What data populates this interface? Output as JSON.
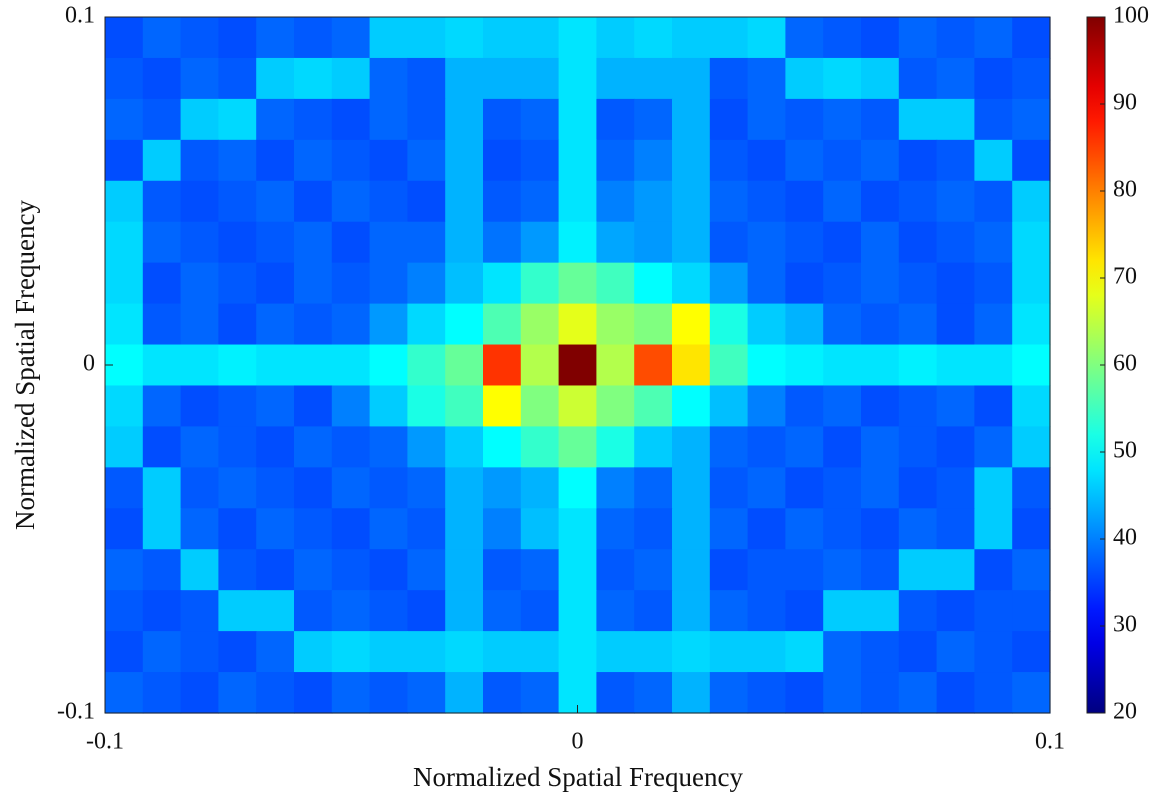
{
  "chart_data": {
    "type": "heatmap",
    "x_label": "Normalized Spatial Frequency",
    "y_label": "Normalized Spatial Frequency",
    "xlim": [
      -0.1,
      0.1
    ],
    "ylim": [
      -0.1,
      0.1
    ],
    "xticks": [
      -0.1,
      0,
      0.1
    ],
    "yticks": [
      -0.1,
      0,
      0.1
    ],
    "colormap": "jet",
    "clim": [
      20,
      100
    ],
    "cticks": [
      20,
      30,
      40,
      50,
      60,
      70,
      80,
      90,
      100
    ],
    "z": [
      [
        36,
        38,
        37,
        36,
        38,
        37,
        38,
        46,
        46,
        47,
        46,
        46,
        48,
        46,
        47,
        46,
        46,
        47,
        38,
        37,
        36,
        38,
        37,
        38,
        36
      ],
      [
        37,
        36,
        38,
        37,
        46,
        47,
        46,
        38,
        37,
        44,
        44,
        44,
        48,
        44,
        44,
        44,
        37,
        38,
        46,
        47,
        46,
        37,
        38,
        36,
        37
      ],
      [
        38,
        37,
        46,
        47,
        38,
        37,
        36,
        38,
        37,
        44,
        37,
        38,
        48,
        37,
        38,
        44,
        36,
        38,
        37,
        38,
        37,
        46,
        46,
        37,
        38
      ],
      [
        36,
        46,
        37,
        38,
        36,
        38,
        37,
        36,
        38,
        44,
        36,
        37,
        48,
        38,
        40,
        44,
        37,
        36,
        38,
        37,
        38,
        36,
        37,
        46,
        36
      ],
      [
        46,
        37,
        36,
        37,
        38,
        36,
        38,
        37,
        36,
        44,
        37,
        38,
        48,
        40,
        42,
        44,
        38,
        37,
        36,
        38,
        36,
        37,
        38,
        37,
        46
      ],
      [
        47,
        38,
        37,
        36,
        37,
        38,
        36,
        38,
        38,
        44,
        39,
        42,
        49,
        43,
        42,
        44,
        37,
        38,
        37,
        36,
        38,
        36,
        37,
        38,
        47
      ],
      [
        47,
        36,
        38,
        37,
        36,
        38,
        37,
        38,
        40,
        45,
        48,
        54,
        58,
        55,
        50,
        47,
        42,
        38,
        36,
        37,
        38,
        37,
        36,
        37,
        47
      ],
      [
        48,
        37,
        38,
        36,
        38,
        37,
        38,
        42,
        47,
        50,
        56,
        62,
        68,
        62,
        60,
        70,
        52,
        46,
        44,
        38,
        37,
        38,
        36,
        38,
        48
      ],
      [
        50,
        48,
        48,
        49,
        48,
        48,
        48,
        50,
        54,
        58,
        86,
        64,
        100,
        64,
        84,
        72,
        55,
        50,
        49,
        48,
        48,
        49,
        48,
        48,
        50
      ],
      [
        47,
        38,
        36,
        37,
        38,
        36,
        40,
        46,
        52,
        55,
        70,
        60,
        66,
        60,
        56,
        50,
        45,
        40,
        37,
        38,
        36,
        37,
        38,
        36,
        47
      ],
      [
        46,
        36,
        38,
        37,
        36,
        38,
        37,
        38,
        42,
        46,
        50,
        54,
        58,
        52,
        46,
        44,
        38,
        37,
        38,
        36,
        38,
        37,
        36,
        38,
        46
      ],
      [
        37,
        46,
        37,
        38,
        37,
        36,
        38,
        37,
        38,
        44,
        42,
        44,
        50,
        40,
        38,
        44,
        37,
        38,
        36,
        37,
        38,
        36,
        37,
        46,
        37
      ],
      [
        36,
        46,
        38,
        36,
        38,
        37,
        36,
        38,
        37,
        44,
        40,
        45,
        48,
        38,
        37,
        44,
        38,
        36,
        38,
        37,
        36,
        38,
        37,
        46,
        36
      ],
      [
        38,
        37,
        46,
        37,
        36,
        38,
        37,
        36,
        38,
        44,
        37,
        38,
        48,
        37,
        38,
        44,
        36,
        37,
        37,
        38,
        37,
        46,
        46,
        36,
        38
      ],
      [
        37,
        36,
        37,
        46,
        46,
        37,
        38,
        37,
        36,
        44,
        38,
        37,
        48,
        38,
        37,
        44,
        38,
        37,
        36,
        46,
        46,
        37,
        36,
        37,
        37
      ],
      [
        36,
        38,
        37,
        36,
        38,
        46,
        47,
        46,
        46,
        47,
        46,
        46,
        48,
        46,
        46,
        47,
        46,
        46,
        47,
        38,
        37,
        36,
        38,
        37,
        36
      ],
      [
        38,
        37,
        36,
        38,
        37,
        36,
        38,
        37,
        38,
        44,
        37,
        38,
        48,
        37,
        38,
        44,
        38,
        37,
        36,
        38,
        37,
        38,
        36,
        37,
        38
      ]
    ]
  }
}
